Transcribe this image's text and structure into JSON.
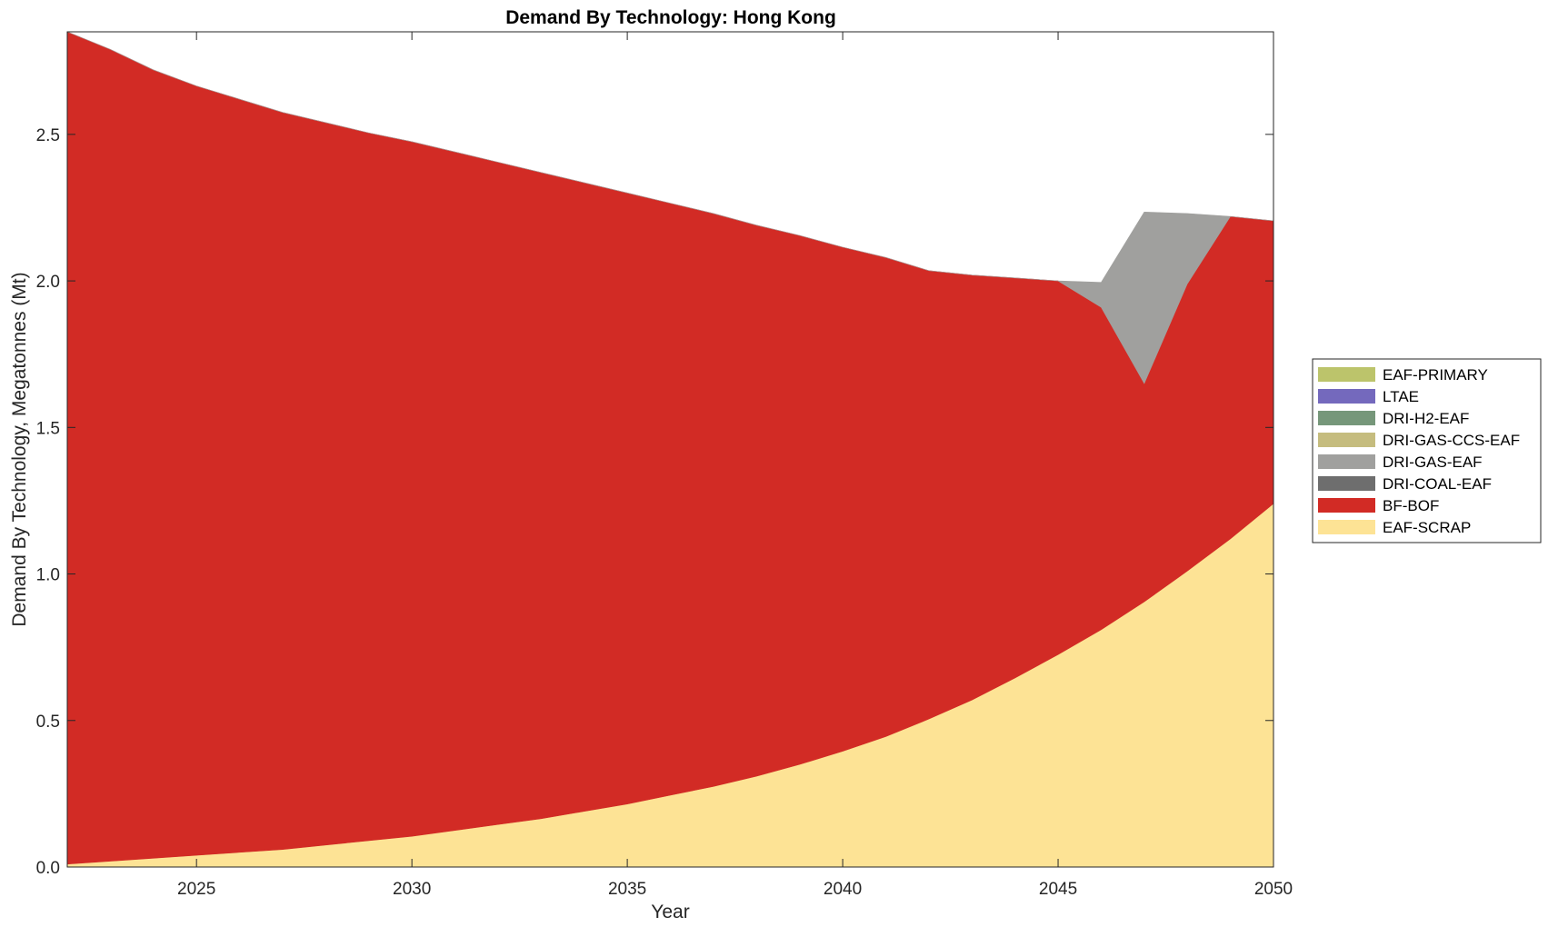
{
  "chart_data": {
    "type": "area",
    "title": "Demand By Technology: Hong Kong",
    "xlabel": "Year",
    "ylabel": "Demand By Technology, Megatonnes (Mt)",
    "xlim": [
      2022,
      2050
    ],
    "ylim": [
      0,
      2.85
    ],
    "xticks": [
      "2025",
      "2030",
      "2035",
      "2040",
      "2045",
      "2050"
    ],
    "yticks": [
      "0.0",
      "0.5",
      "1.0",
      "1.5",
      "2.0",
      "2.5"
    ],
    "grid": false,
    "legend_position": "right",
    "x": [
      2022,
      2023,
      2024,
      2025,
      2026,
      2027,
      2028,
      2029,
      2030,
      2031,
      2032,
      2033,
      2034,
      2035,
      2036,
      2037,
      2038,
      2039,
      2040,
      2041,
      2042,
      2043,
      2044,
      2045,
      2046,
      2047,
      2048,
      2049,
      2050
    ],
    "series": [
      {
        "name": "EAF-SCRAP",
        "color": "#fde395",
        "values": [
          0.01,
          0.02,
          0.03,
          0.04,
          0.05,
          0.06,
          0.075,
          0.09,
          0.105,
          0.125,
          0.145,
          0.165,
          0.19,
          0.215,
          0.245,
          0.275,
          0.31,
          0.35,
          0.395,
          0.445,
          0.505,
          0.57,
          0.645,
          0.725,
          0.81,
          0.905,
          1.01,
          1.12,
          1.24
        ]
      },
      {
        "name": "BF-BOF",
        "color": "#d22b25",
        "values": [
          2.84,
          2.77,
          2.69,
          2.625,
          2.57,
          2.515,
          2.465,
          2.415,
          2.37,
          2.315,
          2.26,
          2.205,
          2.145,
          2.085,
          2.02,
          1.955,
          1.88,
          1.805,
          1.72,
          1.635,
          1.53,
          1.45,
          1.365,
          1.275,
          1.1,
          0.745,
          0.98,
          1.1,
          0.965
        ]
      },
      {
        "name": "DRI-COAL-EAF",
        "color": "#6e6e6e",
        "values": [
          0,
          0,
          0,
          0,
          0,
          0,
          0,
          0,
          0,
          0,
          0,
          0,
          0,
          0,
          0,
          0,
          0,
          0,
          0,
          0,
          0,
          0,
          0,
          0,
          0,
          0,
          0,
          0,
          0
        ]
      },
      {
        "name": "DRI-GAS-EAF",
        "color": "#a0a09e",
        "values": [
          0,
          0,
          0,
          0,
          0,
          0,
          0,
          0,
          0,
          0,
          0,
          0,
          0,
          0,
          0,
          0,
          0,
          0,
          0,
          0,
          0,
          0,
          0,
          0,
          0.085,
          0.585,
          0.24,
          0,
          0
        ]
      },
      {
        "name": "DRI-GAS-CCS-EAF",
        "color": "#c5bc7e",
        "values": [
          0,
          0,
          0,
          0,
          0,
          0,
          0,
          0,
          0,
          0,
          0,
          0,
          0,
          0,
          0,
          0,
          0,
          0,
          0,
          0,
          0,
          0,
          0,
          0,
          0,
          0,
          0,
          0,
          0
        ]
      },
      {
        "name": "DRI-H2-EAF",
        "color": "#76977a",
        "values": [
          0,
          0,
          0,
          0,
          0,
          0,
          0,
          0,
          0,
          0,
          0,
          0,
          0,
          0,
          0,
          0,
          0,
          0,
          0,
          0,
          0,
          0,
          0,
          0,
          0,
          0,
          0,
          0,
          0
        ]
      },
      {
        "name": "LTAE",
        "color": "#7469bd",
        "values": [
          0,
          0,
          0,
          0,
          0,
          0,
          0,
          0,
          0,
          0,
          0,
          0,
          0,
          0,
          0,
          0,
          0,
          0,
          0,
          0,
          0,
          0,
          0,
          0,
          0,
          0,
          0,
          0,
          0
        ]
      },
      {
        "name": "EAF-PRIMARY",
        "color": "#bcc46b",
        "values": [
          0,
          0,
          0,
          0,
          0,
          0,
          0,
          0,
          0,
          0,
          0,
          0,
          0,
          0,
          0,
          0,
          0,
          0,
          0,
          0,
          0,
          0,
          0,
          0,
          0,
          0,
          0,
          0,
          0
        ]
      }
    ],
    "legend_order": [
      "EAF-PRIMARY",
      "LTAE",
      "DRI-H2-EAF",
      "DRI-GAS-CCS-EAF",
      "DRI-GAS-EAF",
      "DRI-COAL-EAF",
      "BF-BOF",
      "EAF-SCRAP"
    ]
  }
}
